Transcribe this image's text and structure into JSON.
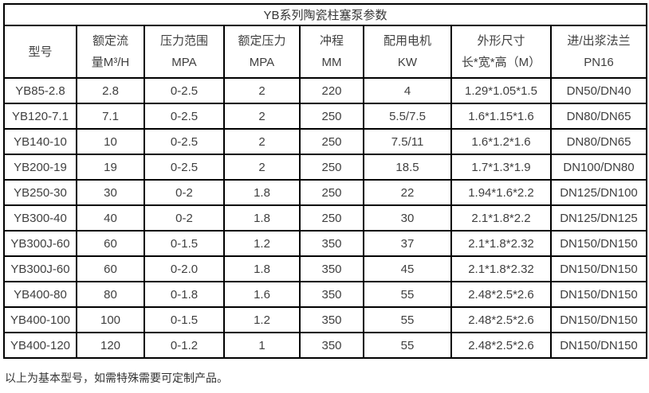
{
  "table": {
    "title": "YB系列陶瓷柱塞泵参数",
    "columns": [
      {
        "line1": "型号",
        "line2": ""
      },
      {
        "line1": "额定流",
        "line2": "量M³/H"
      },
      {
        "line1": "压力范围",
        "line2": "MPA"
      },
      {
        "line1": "额定压力",
        "line2": "MPA"
      },
      {
        "line1": "冲程",
        "line2": "MM"
      },
      {
        "line1": "配用电机",
        "line2": "KW"
      },
      {
        "line1": "外形尺寸",
        "line2": "长*宽*高（M）"
      },
      {
        "line1": "进/出浆法兰",
        "line2": "PN16"
      }
    ],
    "rows": [
      [
        "YB85-2.8",
        "2.8",
        "0-2.5",
        "2",
        "220",
        "4",
        "1.29*1.05*1.5",
        "DN50/DN40"
      ],
      [
        "YB120-7.1",
        "7.1",
        "0-2.5",
        "2",
        "250",
        "5.5/7.5",
        "1.6*1.15*1.6",
        "DN80/DN65"
      ],
      [
        "YB140-10",
        "10",
        "0-2.5",
        "2",
        "250",
        "7.5/11",
        "1.6*1.2*1.6",
        "DN80/DN65"
      ],
      [
        "YB200-19",
        "19",
        "0-2.5",
        "2",
        "250",
        "18.5",
        "1.7*1.3*1.9",
        "DN100/DN80"
      ],
      [
        "YB250-30",
        "30",
        "0-2",
        "1.8",
        "250",
        "22",
        "1.94*1.6*2.2",
        "DN125/DN100"
      ],
      [
        "YB300-40",
        "40",
        "0-2",
        "1.8",
        "250",
        "30",
        "2.1*1.8*2.2",
        "DN125/DN125"
      ],
      [
        "YB300J-60",
        "60",
        "0-1.5",
        "1.2",
        "350",
        "37",
        "2.1*1.8*2.32",
        "DN150/DN150"
      ],
      [
        "YB300J-60",
        "60",
        "0-2.0",
        "1.8",
        "350",
        "45",
        "2.1*1.8*2.32",
        "DN150/DN150"
      ],
      [
        "YB400-80",
        "80",
        "0-1.8",
        "1.6",
        "350",
        "55",
        "2.48*2.5*2.6",
        "DN150/DN150"
      ],
      [
        "YB400-100",
        "100",
        "0-1.5",
        "1.2",
        "350",
        "55",
        "2.48*2.5*2.6",
        "DN150/DN150"
      ],
      [
        "YB400-120",
        "120",
        "0-1.2",
        "1",
        "350",
        "55",
        "2.48*2.5*2.6",
        "DN150/DN150"
      ]
    ]
  },
  "footnote": "以上为基本型号，如需特殊需要可定制产品。",
  "colors": {
    "background": "#ffffff",
    "border": "#000000",
    "text": "#404040"
  }
}
